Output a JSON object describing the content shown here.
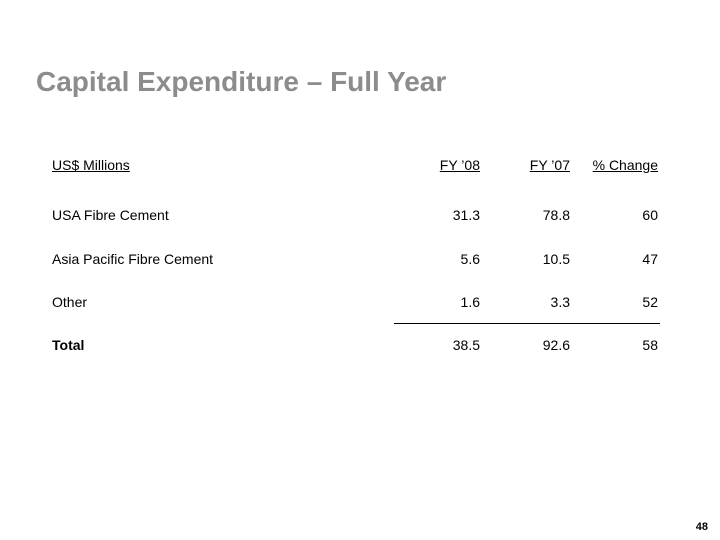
{
  "title": "Capital Expenditure – Full Year",
  "table": {
    "header": {
      "label": "US$ Millions",
      "fy08": "FY ’08",
      "fy07": "FY ’07",
      "change": "% Change"
    },
    "rows": [
      {
        "label": "USA Fibre Cement",
        "fy08": "31.3",
        "fy07": "78.8",
        "change": "60"
      },
      {
        "label": "Asia Pacific Fibre Cement",
        "fy08": "5.6",
        "fy07": "10.5",
        "change": "47"
      },
      {
        "label": "Other",
        "fy08": "1.6",
        "fy07": "3.3",
        "change": "52"
      }
    ],
    "total": {
      "label": "Total",
      "fy08": "38.5",
      "fy07": "92.6",
      "change": "58"
    }
  },
  "page_number": "48"
}
